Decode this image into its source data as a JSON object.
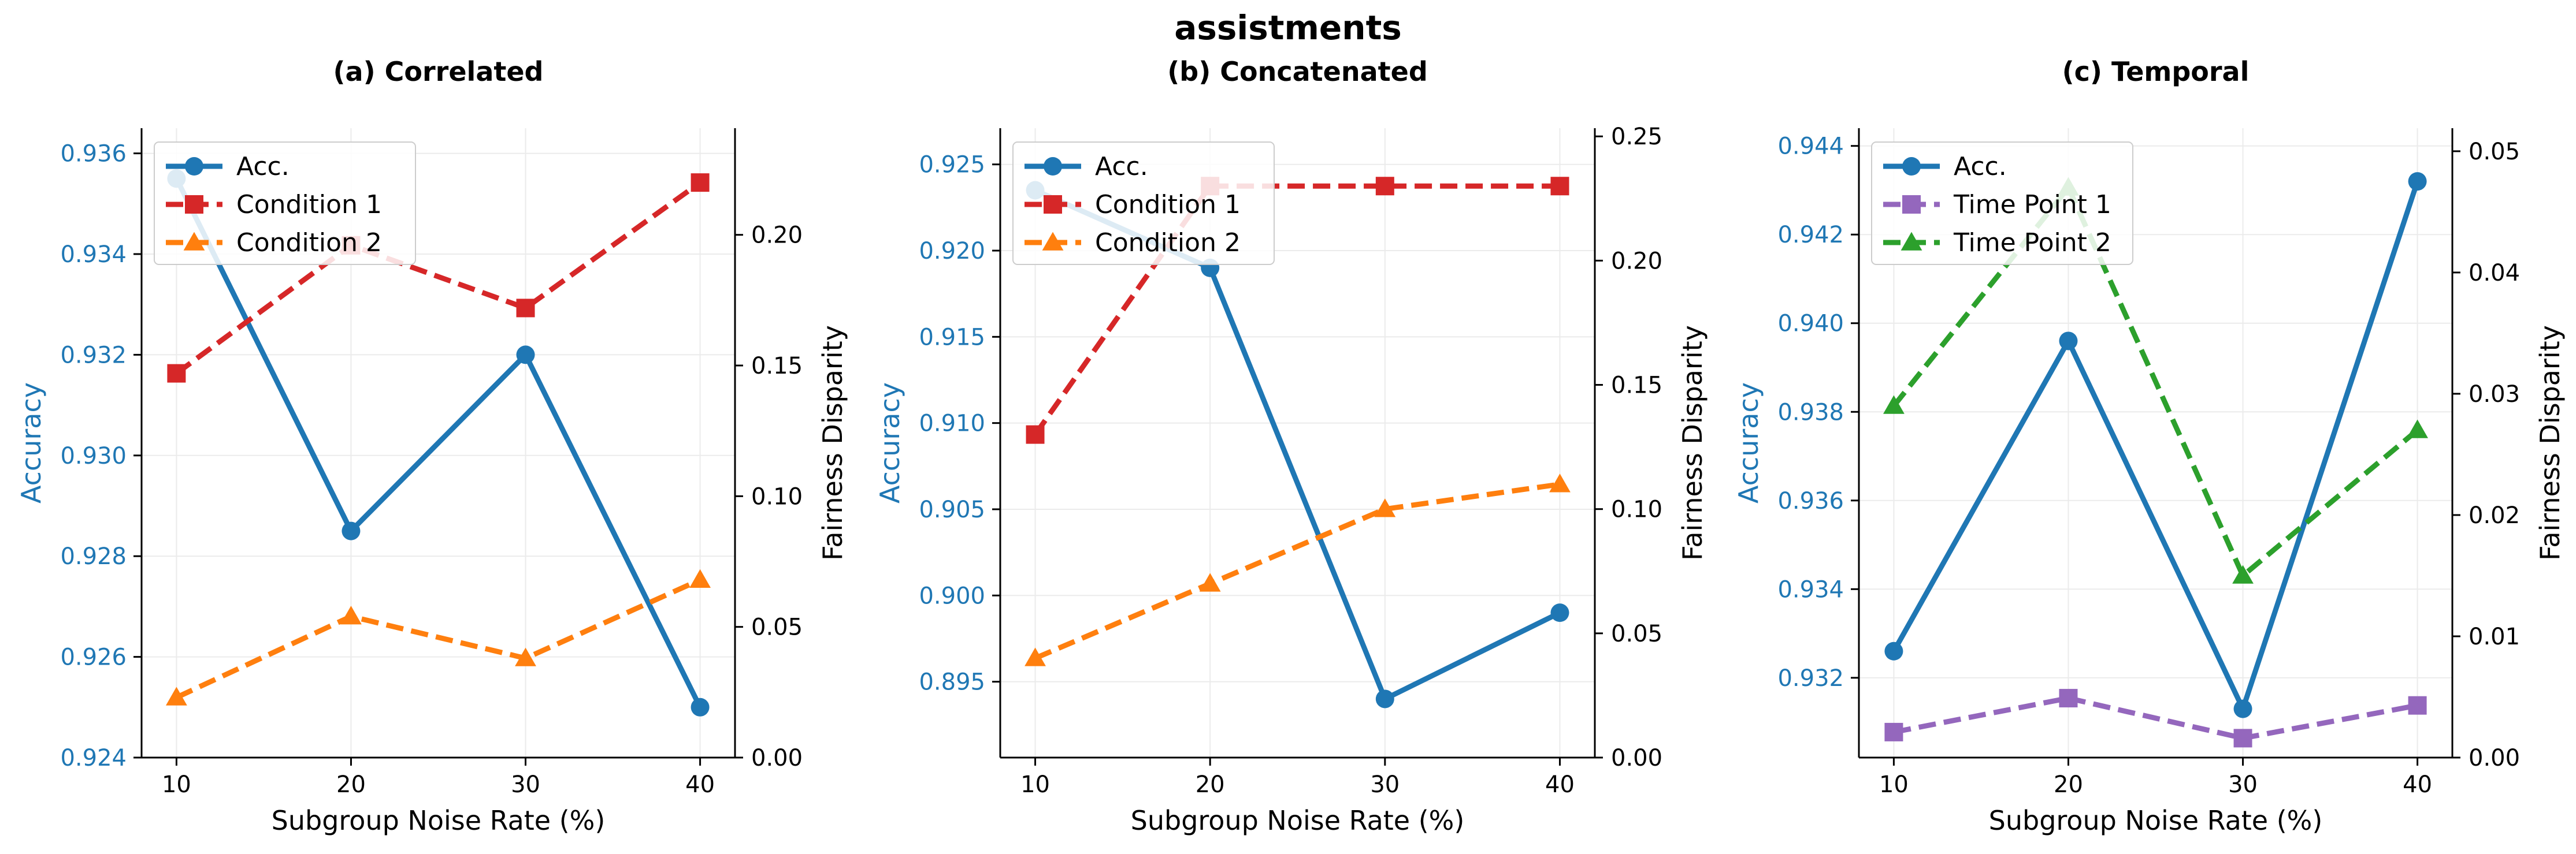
{
  "figure": {
    "title": "assistments"
  },
  "colors": {
    "accuracy": "#1f77b4",
    "red": "#d62728",
    "orange": "#ff7f0e",
    "purple": "#9467bd",
    "green": "#2ca02c",
    "axis": "#000000",
    "grid": "#ebebeb"
  },
  "chart_data": [
    {
      "type": "line",
      "title": "(a) Correlated",
      "xlabel": "Subgroup Noise Rate (%)",
      "ylabel": "Accuracy",
      "y2label": "Fairness Disparity",
      "x": [
        10,
        20,
        30,
        40
      ],
      "xticks": [
        "10",
        "20",
        "30",
        "40"
      ],
      "xlim": [
        8,
        42
      ],
      "ylim": [
        0.924,
        0.9365
      ],
      "yticks": [
        "0.924",
        "0.926",
        "0.928",
        "0.930",
        "0.932",
        "0.934",
        "0.936"
      ],
      "y2lim": [
        0.0,
        0.2408
      ],
      "y2ticks": [
        "0.00",
        "0.05",
        "0.10",
        "0.15",
        "0.20"
      ],
      "grid": true,
      "legend": "top-left",
      "series": [
        {
          "name": "Acc.",
          "axis": "left",
          "color": "#1f77b4",
          "marker": "circle",
          "dash": false,
          "values": [
            0.9355,
            0.9285,
            0.932,
            0.925
          ]
        },
        {
          "name": "Condition 1",
          "axis": "right",
          "color": "#d62728",
          "marker": "square",
          "dash": true,
          "values": [
            0.147,
            0.196,
            0.172,
            0.22
          ]
        },
        {
          "name": "Condition 2",
          "axis": "right",
          "color": "#ff7f0e",
          "marker": "triangle",
          "dash": true,
          "values": [
            0.023,
            0.054,
            0.038,
            0.068
          ]
        }
      ]
    },
    {
      "type": "line",
      "title": "(b) Concatenated",
      "xlabel": "Subgroup Noise Rate (%)",
      "ylabel": "Accuracy",
      "y2label": "Fairness Disparity",
      "x": [
        10,
        20,
        30,
        40
      ],
      "xticks": [
        "10",
        "20",
        "30",
        "40"
      ],
      "xlim": [
        8,
        42
      ],
      "ylim": [
        0.8906,
        0.9271
      ],
      "yticks": [
        "0.895",
        "0.900",
        "0.905",
        "0.910",
        "0.915",
        "0.920",
        "0.925"
      ],
      "y2lim": [
        0.0,
        0.2533
      ],
      "y2ticks": [
        "0.00",
        "0.05",
        "0.10",
        "0.15",
        "0.20",
        "0.25"
      ],
      "grid": true,
      "legend": "top-left",
      "series": [
        {
          "name": "Acc.",
          "axis": "left",
          "color": "#1f77b4",
          "marker": "circle",
          "dash": false,
          "values": [
            0.9235,
            0.919,
            0.894,
            0.899
          ]
        },
        {
          "name": "Condition 1",
          "axis": "right",
          "color": "#d62728",
          "marker": "square",
          "dash": true,
          "values": [
            0.13,
            0.23,
            0.23,
            0.23
          ]
        },
        {
          "name": "Condition 2",
          "axis": "right",
          "color": "#ff7f0e",
          "marker": "triangle",
          "dash": true,
          "values": [
            0.04,
            0.07,
            0.1,
            0.11
          ]
        }
      ]
    },
    {
      "type": "line",
      "title": "(c) Temporal",
      "xlabel": "Subgroup Noise Rate (%)",
      "ylabel": "Accuracy",
      "y2label": "Fairness Disparity",
      "x": [
        10,
        20,
        30,
        40
      ],
      "xticks": [
        "10",
        "20",
        "30",
        "40"
      ],
      "xlim": [
        8,
        42
      ],
      "ylim": [
        0.9302,
        0.9444
      ],
      "yticks": [
        "0.932",
        "0.934",
        "0.936",
        "0.938",
        "0.940",
        "0.942",
        "0.944"
      ],
      "y2lim": [
        0.0,
        0.0519
      ],
      "y2ticks": [
        "0.00",
        "0.01",
        "0.02",
        "0.03",
        "0.04",
        "0.05"
      ],
      "grid": true,
      "legend": "top-left",
      "series": [
        {
          "name": "Acc.",
          "axis": "left",
          "color": "#1f77b4",
          "marker": "circle",
          "dash": false,
          "values": [
            0.9326,
            0.9396,
            0.9313,
            0.9432
          ]
        },
        {
          "name": "Time Point 1",
          "axis": "right",
          "color": "#9467bd",
          "marker": "square",
          "dash": true,
          "values": [
            0.0021,
            0.0049,
            0.0016,
            0.0043
          ]
        },
        {
          "name": "Time Point 2",
          "axis": "right",
          "color": "#2ca02c",
          "marker": "triangle",
          "dash": true,
          "values": [
            0.029,
            0.047,
            0.015,
            0.027
          ]
        }
      ]
    }
  ]
}
